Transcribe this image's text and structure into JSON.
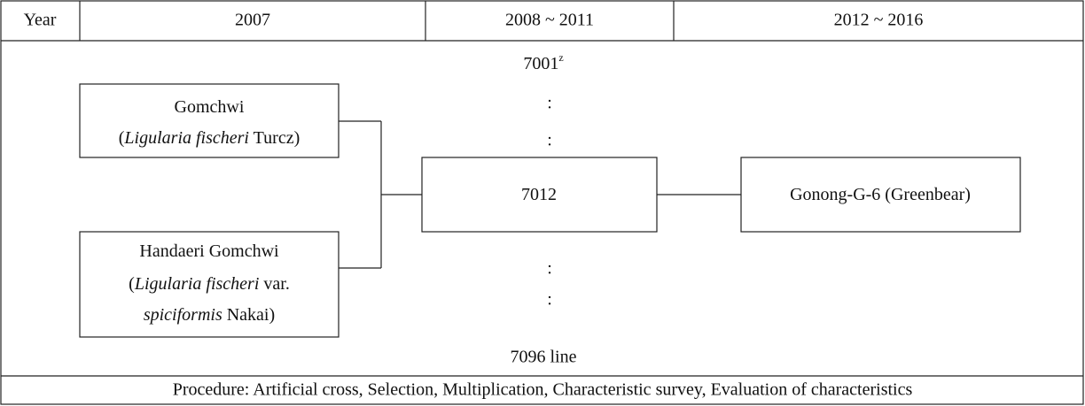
{
  "header": {
    "cells": [
      "Year",
      "2007",
      "2008 ~ 2011",
      "2012 ~ 2016"
    ]
  },
  "top_label": {
    "text": "7001",
    "superscript": "z"
  },
  "dots": [
    ":",
    ":",
    ":",
    ":"
  ],
  "bottom_label": "7096 line",
  "nodes": [
    {
      "lines": [
        [
          "Gomchwi"
        ],
        [
          "(",
          "Ligularia fischeri",
          " Turcz)"
        ]
      ]
    },
    {
      "lines": [
        [
          "Handaeri Gomchwi"
        ],
        [
          "(",
          "Ligularia fischeri",
          " var."
        ],
        [
          "spiciformis",
          " Nakai)"
        ]
      ]
    },
    {
      "lines": [
        [
          "7012"
        ]
      ]
    },
    {
      "lines": [
        [
          "Gonong-G-6 (Greenbear)"
        ]
      ]
    }
  ],
  "footer": "Procedure: Artificial cross, Selection, Multiplication, Characteristic survey, Evaluation of characteristics"
}
